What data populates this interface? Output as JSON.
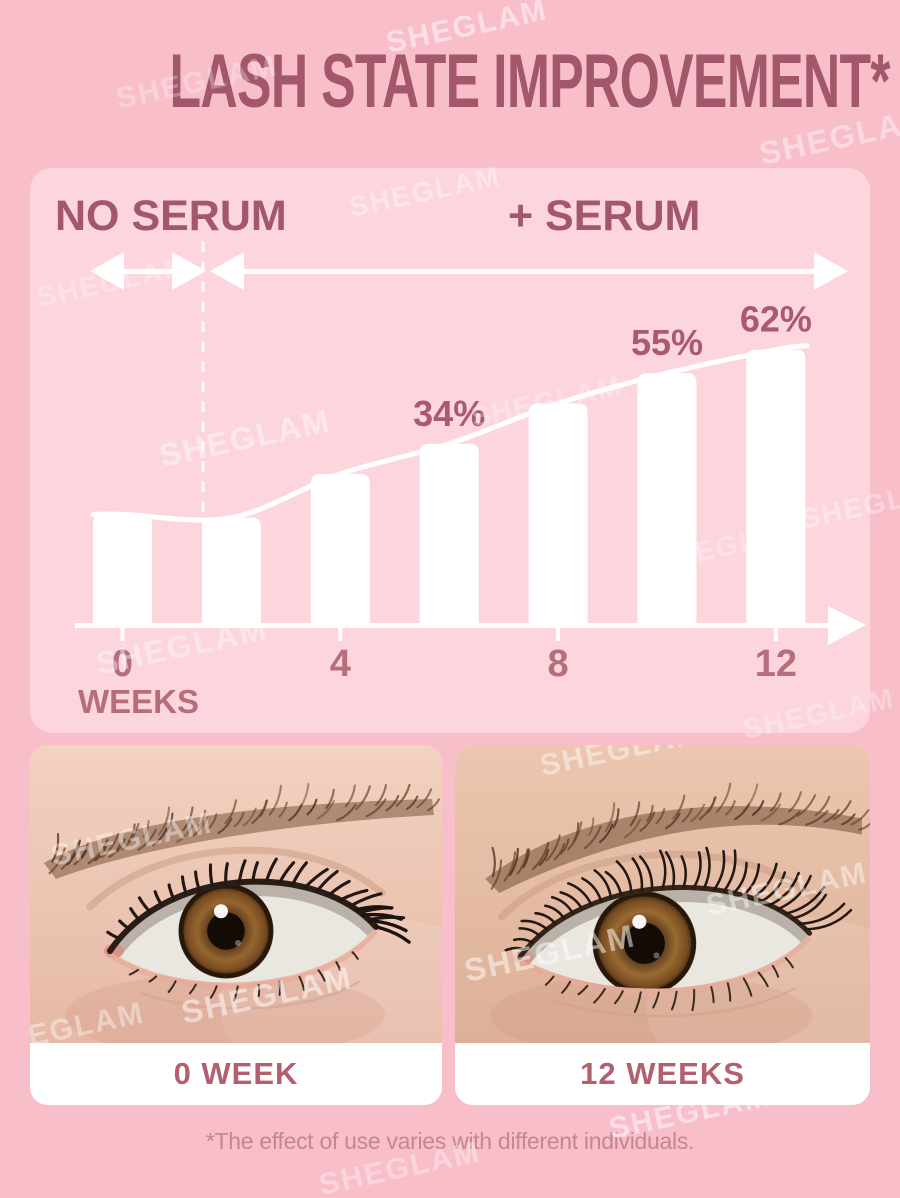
{
  "brand": {
    "watermark": "SHEGLAM"
  },
  "title": "LASH STATE IMPROVEMENT*",
  "chart": {
    "no_serum_label": "NO SERUM",
    "plus_serum_label": "+ SERUM",
    "weeks_label": "WEEKS"
  },
  "chart_data": {
    "type": "bar",
    "title": "LASH STATE IMPROVEMENT*",
    "xlabel": "WEEKS",
    "x_ticks": [
      0,
      4,
      8,
      12
    ],
    "bar_weeks": [
      0,
      2,
      4,
      6,
      8,
      10,
      12
    ],
    "values_pct": [
      13,
      12,
      25,
      34,
      46,
      55,
      62
    ],
    "value_labels": [
      "",
      "",
      "",
      "34%",
      "",
      "55%",
      "62%"
    ],
    "regions": [
      {
        "label": "NO SERUM",
        "from_week": 0,
        "to_week": 1
      },
      {
        "label": "+ SERUM",
        "from_week": 1,
        "to_week": 12
      }
    ],
    "trend_line": true,
    "bar_color": "#ffffff",
    "ylim": [
      0,
      70
    ],
    "grid": false,
    "legend": "none"
  },
  "comparison": {
    "left_label": "0 WEEK",
    "right_label": "12 WEEKS"
  },
  "footer": {
    "disclaimer": "*The effect of use varies with different individuals."
  },
  "colors": {
    "background": "#f8bfca",
    "panel": "#fcd6dc",
    "heading": "#a3576a",
    "percent_text": "#a95a6e",
    "axis_text": "#b46e7c",
    "card_label_text": "#b25f6e",
    "footer_text": "#c5868f",
    "bar": "#ffffff",
    "watermark": "#ffffff"
  }
}
